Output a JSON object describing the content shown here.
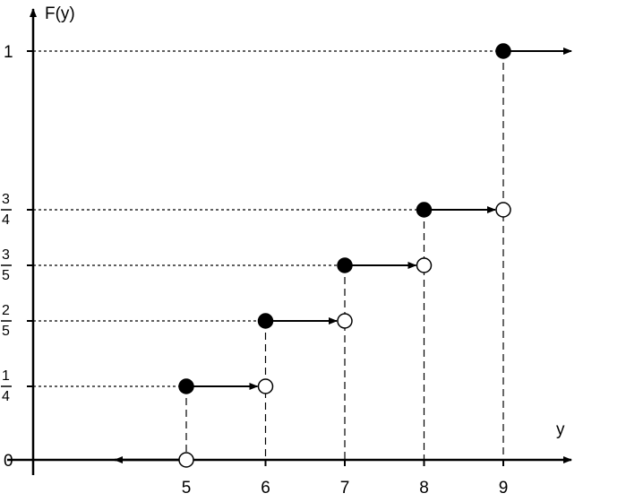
{
  "chart_data": {
    "type": "step",
    "title": "",
    "xlabel": "y",
    "ylabel": "F(y)",
    "x_ticks": [
      {
        "value": 5,
        "label": "5"
      },
      {
        "value": 6,
        "label": "6"
      },
      {
        "value": 7,
        "label": "7"
      },
      {
        "value": 8,
        "label": "8"
      },
      {
        "value": 9,
        "label": "9"
      }
    ],
    "y_ticks": [
      {
        "value": 0,
        "label": "0"
      },
      {
        "value": 0.25,
        "num": "1",
        "den": "4"
      },
      {
        "value": 0.4,
        "num": "2",
        "den": "5"
      },
      {
        "value": 0.6,
        "num": "3",
        "den": "5"
      },
      {
        "value": 0.75,
        "num": "3",
        "den": "4"
      },
      {
        "value": 1,
        "label": "1"
      }
    ],
    "steps": [
      {
        "x_start": null,
        "x_end": 5,
        "y": 0,
        "closed_start": false,
        "open_end": true
      },
      {
        "x_start": 5,
        "x_end": 6,
        "y": 0.25,
        "closed_start": true,
        "open_end": true
      },
      {
        "x_start": 6,
        "x_end": 7,
        "y": 0.4,
        "closed_start": true,
        "open_end": true
      },
      {
        "x_start": 7,
        "x_end": 8,
        "y": 0.6,
        "closed_start": true,
        "open_end": true
      },
      {
        "x_start": 8,
        "x_end": 9,
        "y": 0.75,
        "closed_start": true,
        "open_end": true
      },
      {
        "x_start": 9,
        "x_end": null,
        "y": 1,
        "closed_start": true,
        "open_end": false
      }
    ],
    "grid": false,
    "legend": "none"
  }
}
